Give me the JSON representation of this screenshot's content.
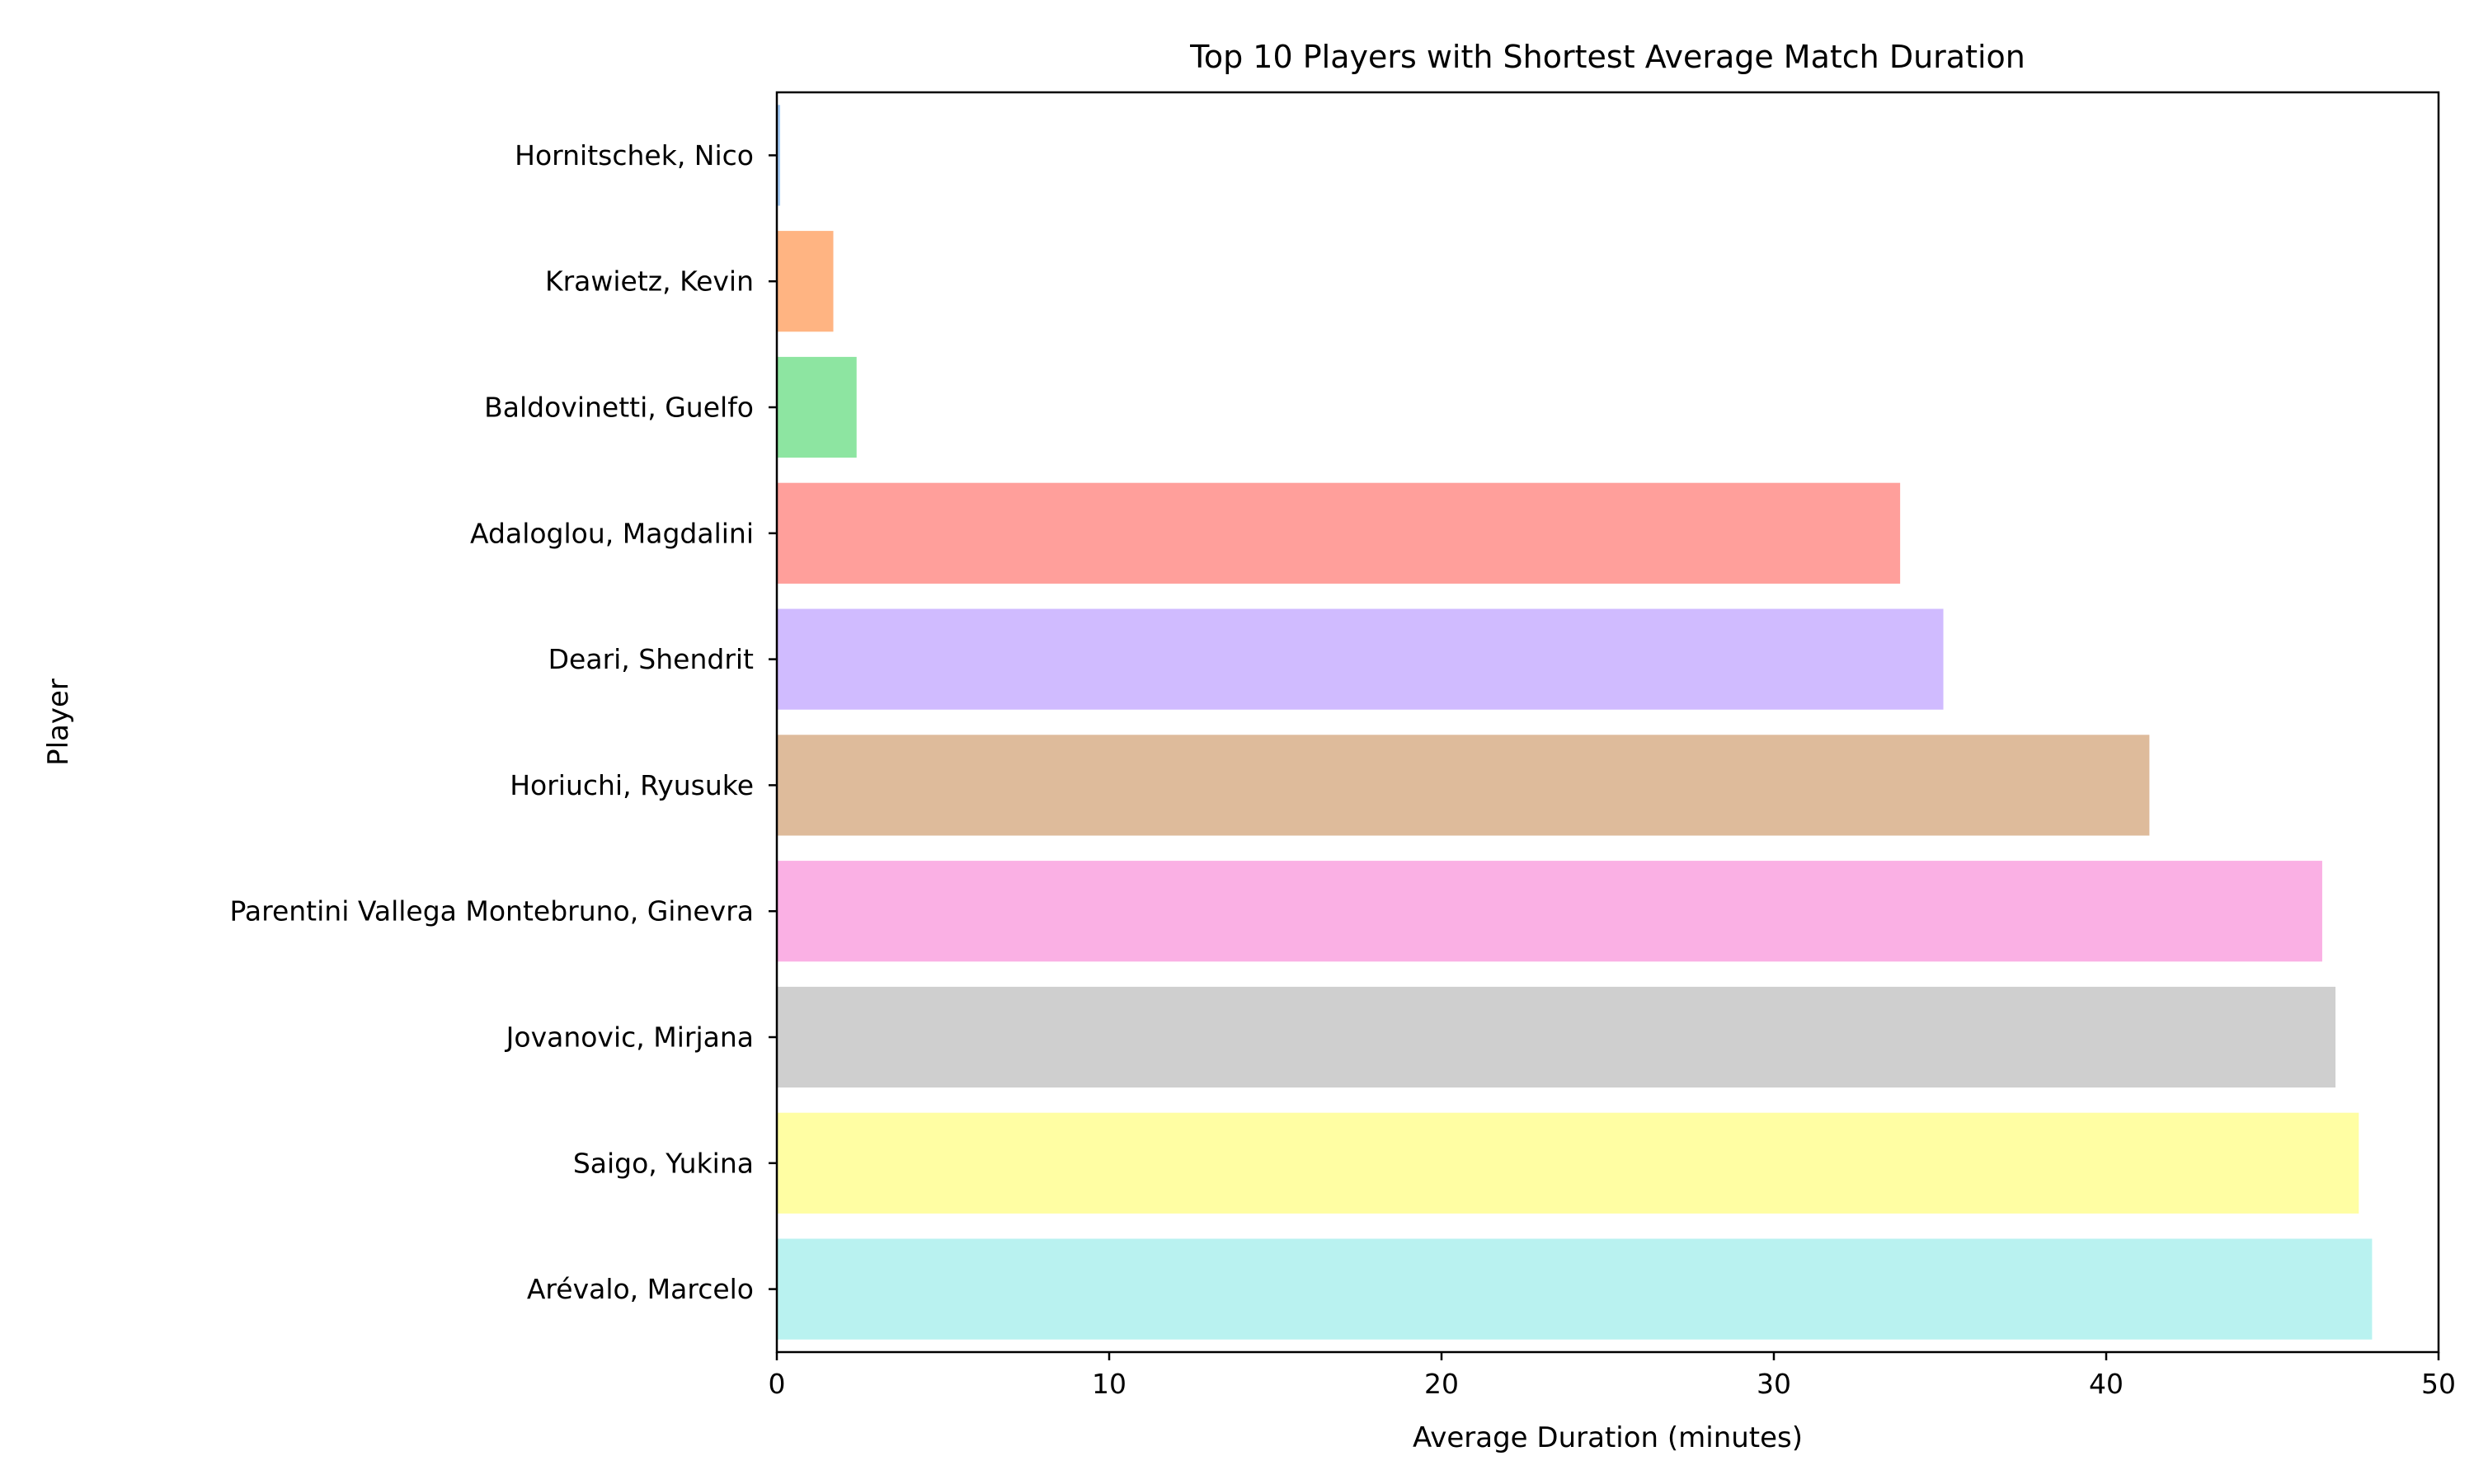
{
  "chart_data": {
    "type": "bar",
    "orientation": "horizontal",
    "title": "Top 10 Players with Shortest Average Match Duration",
    "xlabel": "Average Duration (minutes)",
    "ylabel": "Player",
    "xlim": [
      0,
      50
    ],
    "xticks": [
      0,
      10,
      20,
      30,
      40,
      50
    ],
    "grid": false,
    "categories": [
      "Hornitschek, Nico",
      "Krawietz, Kevin",
      "Baldovinetti, Guelfo",
      "Adaloglou, Magdalini",
      "Deari, Shendrit",
      "Horiuchi, Ryusuke",
      "Parentini Vallega Montebruno, Ginevra",
      "Jovanovic, Mirjana",
      "Saigo, Yukina",
      "Arévalo, Marcelo"
    ],
    "values": [
      0.1,
      1.7,
      2.4,
      33.8,
      35.1,
      41.3,
      46.5,
      46.9,
      47.6,
      48.0
    ],
    "colors": [
      "#a1c9f4",
      "#ffb482",
      "#8de5a1",
      "#ff9f9b",
      "#d0bbff",
      "#debb9b",
      "#fab0e4",
      "#cfcfcf",
      "#fffea3",
      "#b9f2f0"
    ]
  }
}
